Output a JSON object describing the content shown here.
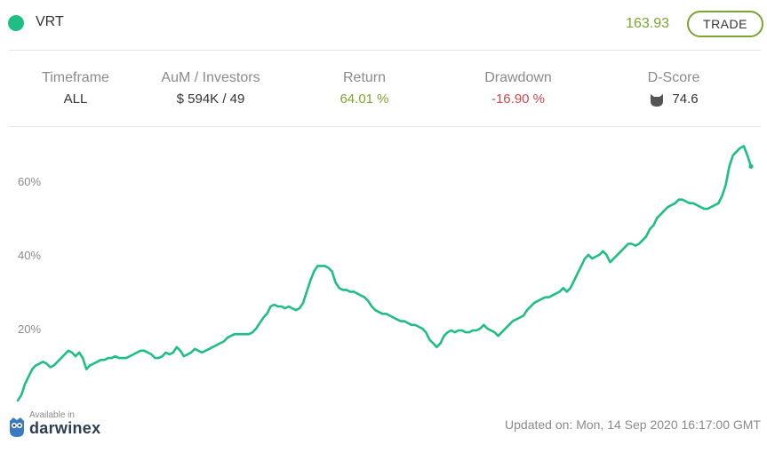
{
  "header": {
    "ticker": "VRT",
    "price": "163.93",
    "trade_label": "TRADE",
    "accent": "#1fbe84",
    "price_color": "#7aa531"
  },
  "stats": [
    {
      "label": "Timeframe",
      "value": "ALL",
      "tone": "neutral"
    },
    {
      "label": "AuM / Investors",
      "value": "$ 594K / 49",
      "tone": "neutral"
    },
    {
      "label": "Return",
      "value": "64.01 %",
      "tone": "green"
    },
    {
      "label": "Drawdown",
      "value": "-16.90 %",
      "tone": "red"
    },
    {
      "label": "D-Score",
      "value": "74.6",
      "tone": "neutral",
      "icon": "cat-icon"
    }
  ],
  "chart_data": {
    "type": "line",
    "title": "",
    "xlabel": "",
    "ylabel": "",
    "ylim": [
      -0.5,
      73
    ],
    "yticks": [
      20,
      40,
      60
    ],
    "ytick_labels": [
      "20%",
      "40%",
      "60%"
    ],
    "grid": false,
    "line_color": "#1fbe84",
    "series": [
      {
        "values": [
          0.5,
          2,
          5,
          7,
          9,
          10,
          10.5,
          11,
          10.5,
          9.5,
          10,
          11,
          12,
          13,
          14,
          13.5,
          12.5,
          13.5,
          12,
          9,
          10,
          10.5,
          11,
          11.5,
          11.5,
          12,
          12,
          12.5,
          12,
          12,
          12,
          12.5,
          13,
          13.5,
          14,
          14,
          13.5,
          13,
          12,
          12,
          12.5,
          13.5,
          13,
          13.5,
          15,
          14,
          12.5,
          13,
          13.5,
          14.5,
          14,
          13.5,
          14,
          14.5,
          15,
          15.5,
          16,
          16.5,
          17.5,
          18,
          18.5,
          18.5,
          18.5,
          18.5,
          18.5,
          19,
          20,
          21.5,
          23,
          24,
          26,
          26.5,
          26,
          26,
          25.5,
          26,
          25.5,
          25,
          25.5,
          27,
          30,
          33,
          35.5,
          37,
          37,
          37,
          36.5,
          35.5,
          32.5,
          31,
          30.5,
          30.5,
          30,
          30,
          29.5,
          29,
          28.5,
          27.5,
          26,
          25,
          24.5,
          24,
          24,
          23.5,
          23,
          22.5,
          22,
          22,
          21.5,
          21,
          21,
          20.5,
          20,
          19,
          17,
          16,
          15,
          16,
          18,
          19,
          19.5,
          19,
          19.5,
          19.5,
          19,
          19,
          19.5,
          19.5,
          20,
          21,
          20,
          19.5,
          19,
          18,
          19,
          20,
          21,
          22,
          22.5,
          23,
          23.5,
          25,
          26,
          27,
          27.5,
          28,
          28.5,
          28.5,
          29,
          29.5,
          30,
          31,
          30,
          31,
          33,
          35,
          37,
          39,
          40,
          39,
          39.5,
          40,
          41,
          40,
          38,
          39,
          40,
          41,
          42,
          43,
          43,
          42.5,
          43,
          44,
          45,
          47,
          48,
          50,
          51,
          52,
          53,
          53.5,
          54,
          55,
          55,
          54.5,
          54,
          54,
          53.5,
          53,
          52.5,
          52.5,
          53,
          53.5,
          54,
          56,
          59,
          64,
          67,
          68,
          69,
          69.5,
          67,
          64
        ]
      }
    ]
  },
  "footer": {
    "available_in": "Available in",
    "brand": "darwinex",
    "updated": "Updated on: Mon, 14 Sep 2020 16:17:00 GMT"
  }
}
